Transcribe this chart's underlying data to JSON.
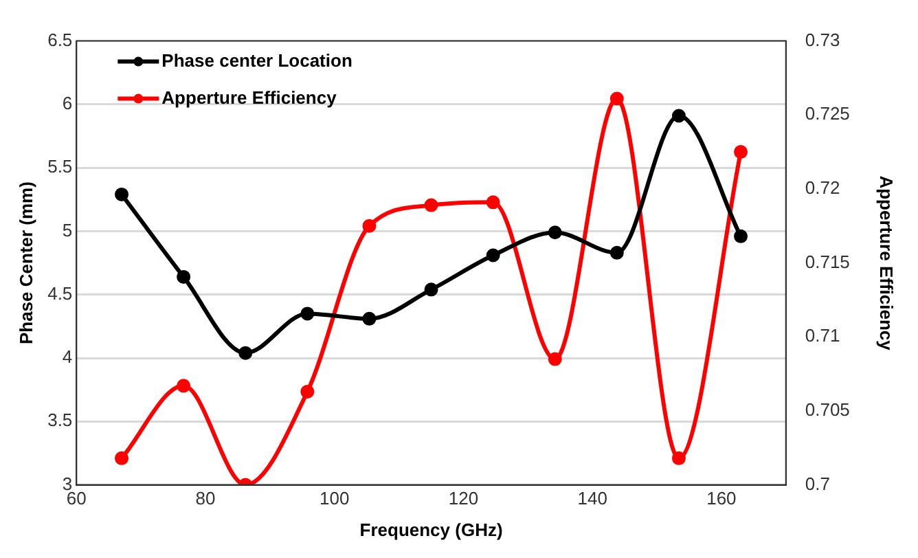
{
  "chart_data": {
    "type": "line",
    "xlabel": "Frequency (GHz)",
    "ylabel": "Phase Center (mm)",
    "y2label": "Apperture Efficiency",
    "x": [
      67,
      76.6,
      86.2,
      95.8,
      105.4,
      115,
      124.6,
      134.2,
      143.8,
      153.4,
      163
    ],
    "xlim": [
      60,
      170
    ],
    "xticks": [
      60,
      80,
      100,
      120,
      140,
      160
    ],
    "ylim": [
      3,
      6.5
    ],
    "yticks": [
      3,
      3.5,
      4,
      4.5,
      5,
      5.5,
      6,
      6.5
    ],
    "y2lim": [
      0.7,
      0.73
    ],
    "y2ticks": [
      0.7,
      0.705,
      0.71,
      0.715,
      0.72,
      0.725,
      0.73
    ],
    "series": [
      {
        "name": "Phase center Location",
        "color": "#000000",
        "values": [
          5.29,
          4.64,
          4.04,
          4.35,
          4.31,
          4.54,
          4.81,
          4.99,
          4.83,
          5.91,
          4.96
        ]
      },
      {
        "name": "Apperture Efficiency",
        "color": "#ff0000",
        "axis": "y2",
        "values": [
          0.7018,
          0.7067,
          0.7,
          0.7063,
          0.7175,
          0.7189,
          0.7191,
          0.7085,
          0.7261,
          0.7018,
          0.7225
        ]
      }
    ],
    "grid": "y",
    "legend": "top left",
    "marker": "circle",
    "line_style": "solid"
  }
}
